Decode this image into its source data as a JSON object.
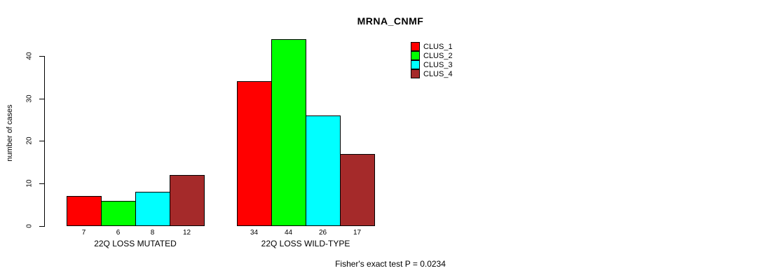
{
  "title": "MRNA_CNMF",
  "y_axis": {
    "label": "number of cases",
    "tick_labels": [
      "0",
      "10",
      "20",
      "30",
      "40"
    ]
  },
  "footer": "Fisher's exact test P = 0.0234",
  "legend": {
    "items": [
      {
        "label": "CLUS_1",
        "color": "#ff0000"
      },
      {
        "label": "CLUS_2",
        "color": "#00ff00"
      },
      {
        "label": "CLUS_3",
        "color": "#00ffff"
      },
      {
        "label": "CLUS_4",
        "color": "#a52a2a"
      }
    ]
  },
  "chart_data": {
    "type": "bar",
    "title": "MRNA_CNMF",
    "xlabel": "",
    "ylabel": "number of cases",
    "categories": [
      "22Q LOSS MUTATED",
      "22Q LOSS WILD-TYPE"
    ],
    "series": [
      {
        "name": "CLUS_1",
        "color": "#ff0000",
        "values": [
          7,
          34
        ]
      },
      {
        "name": "CLUS_2",
        "color": "#00ff00",
        "values": [
          6,
          44
        ]
      },
      {
        "name": "CLUS_3",
        "color": "#00ffff",
        "values": [
          8,
          26
        ]
      },
      {
        "name": "CLUS_4",
        "color": "#a52a2a",
        "values": [
          12,
          17
        ]
      }
    ],
    "bar_value_labels": [
      [
        7,
        6,
        8,
        12
      ],
      [
        34,
        44,
        26,
        17
      ]
    ],
    "yticks": [
      0,
      10,
      20,
      30,
      40
    ],
    "ylim": [
      0,
      44
    ],
    "grid": false,
    "legend_position": "top-right",
    "annotation": "Fisher's exact test P = 0.0234"
  }
}
